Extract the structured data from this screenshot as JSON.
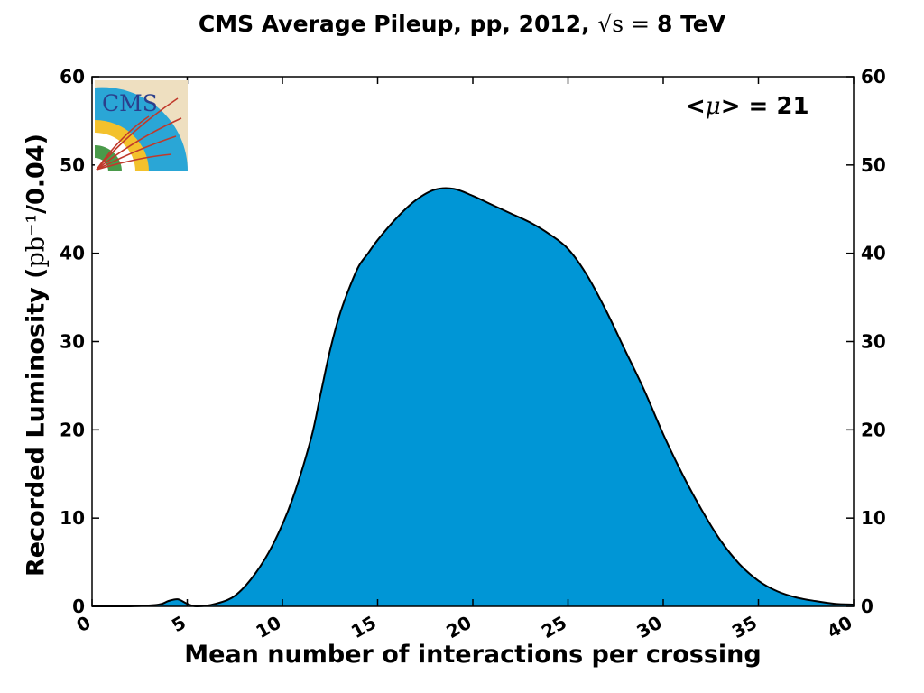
{
  "chart_data": {
    "type": "area",
    "title_parts": {
      "main": "CMS Average Pileup, pp, 2012, ",
      "sqrt": "√s",
      "eq": " = ",
      "energy": "8 TeV"
    },
    "xlabel": "Mean number of interactions per crossing",
    "ylabel_parts": {
      "prefix": "Recorded Luminosity (",
      "unit": "pb⁻¹",
      "suffix": "/0.04)"
    },
    "annotation": {
      "prefix": "<",
      "mu": "μ",
      "suffix": "> = 21"
    },
    "logo_text": "CMS",
    "xlim": [
      0,
      40
    ],
    "ylim": [
      0,
      60
    ],
    "x_ticks": [
      "0",
      "5",
      "10",
      "15",
      "20",
      "25",
      "30",
      "35",
      "40"
    ],
    "y_ticks": [
      "0",
      "10",
      "20",
      "30",
      "40",
      "50",
      "60"
    ],
    "fill_color": "#0096D6",
    "line_color": "#000000",
    "x": [
      0,
      2,
      3.5,
      4.0,
      4.5,
      5.0,
      5.5,
      6.5,
      7.5,
      8.5,
      9.5,
      10.5,
      11.5,
      12.0,
      12.5,
      13.0,
      13.5,
      14.0,
      14.5,
      15.0,
      16.0,
      17.0,
      18.0,
      19.0,
      20.0,
      21.0,
      22.0,
      23.0,
      24.0,
      25.0,
      26.0,
      27.0,
      28.0,
      29.0,
      30.0,
      31.0,
      32.0,
      33.0,
      34.0,
      35.0,
      36.0,
      37.0,
      38.0,
      39.0,
      40.0
    ],
    "y": [
      0,
      0,
      0.2,
      0.6,
      0.8,
      0.3,
      0,
      0.3,
      1.2,
      3.5,
      7.0,
      12.0,
      19.0,
      24.0,
      29.0,
      33.0,
      36.0,
      38.5,
      40.0,
      41.5,
      44.0,
      46.0,
      47.2,
      47.3,
      46.5,
      45.5,
      44.5,
      43.5,
      42.2,
      40.5,
      37.5,
      33.5,
      29.0,
      24.5,
      19.5,
      15.0,
      11.0,
      7.5,
      4.8,
      2.9,
      1.7,
      1.0,
      0.6,
      0.3,
      0.2
    ]
  }
}
